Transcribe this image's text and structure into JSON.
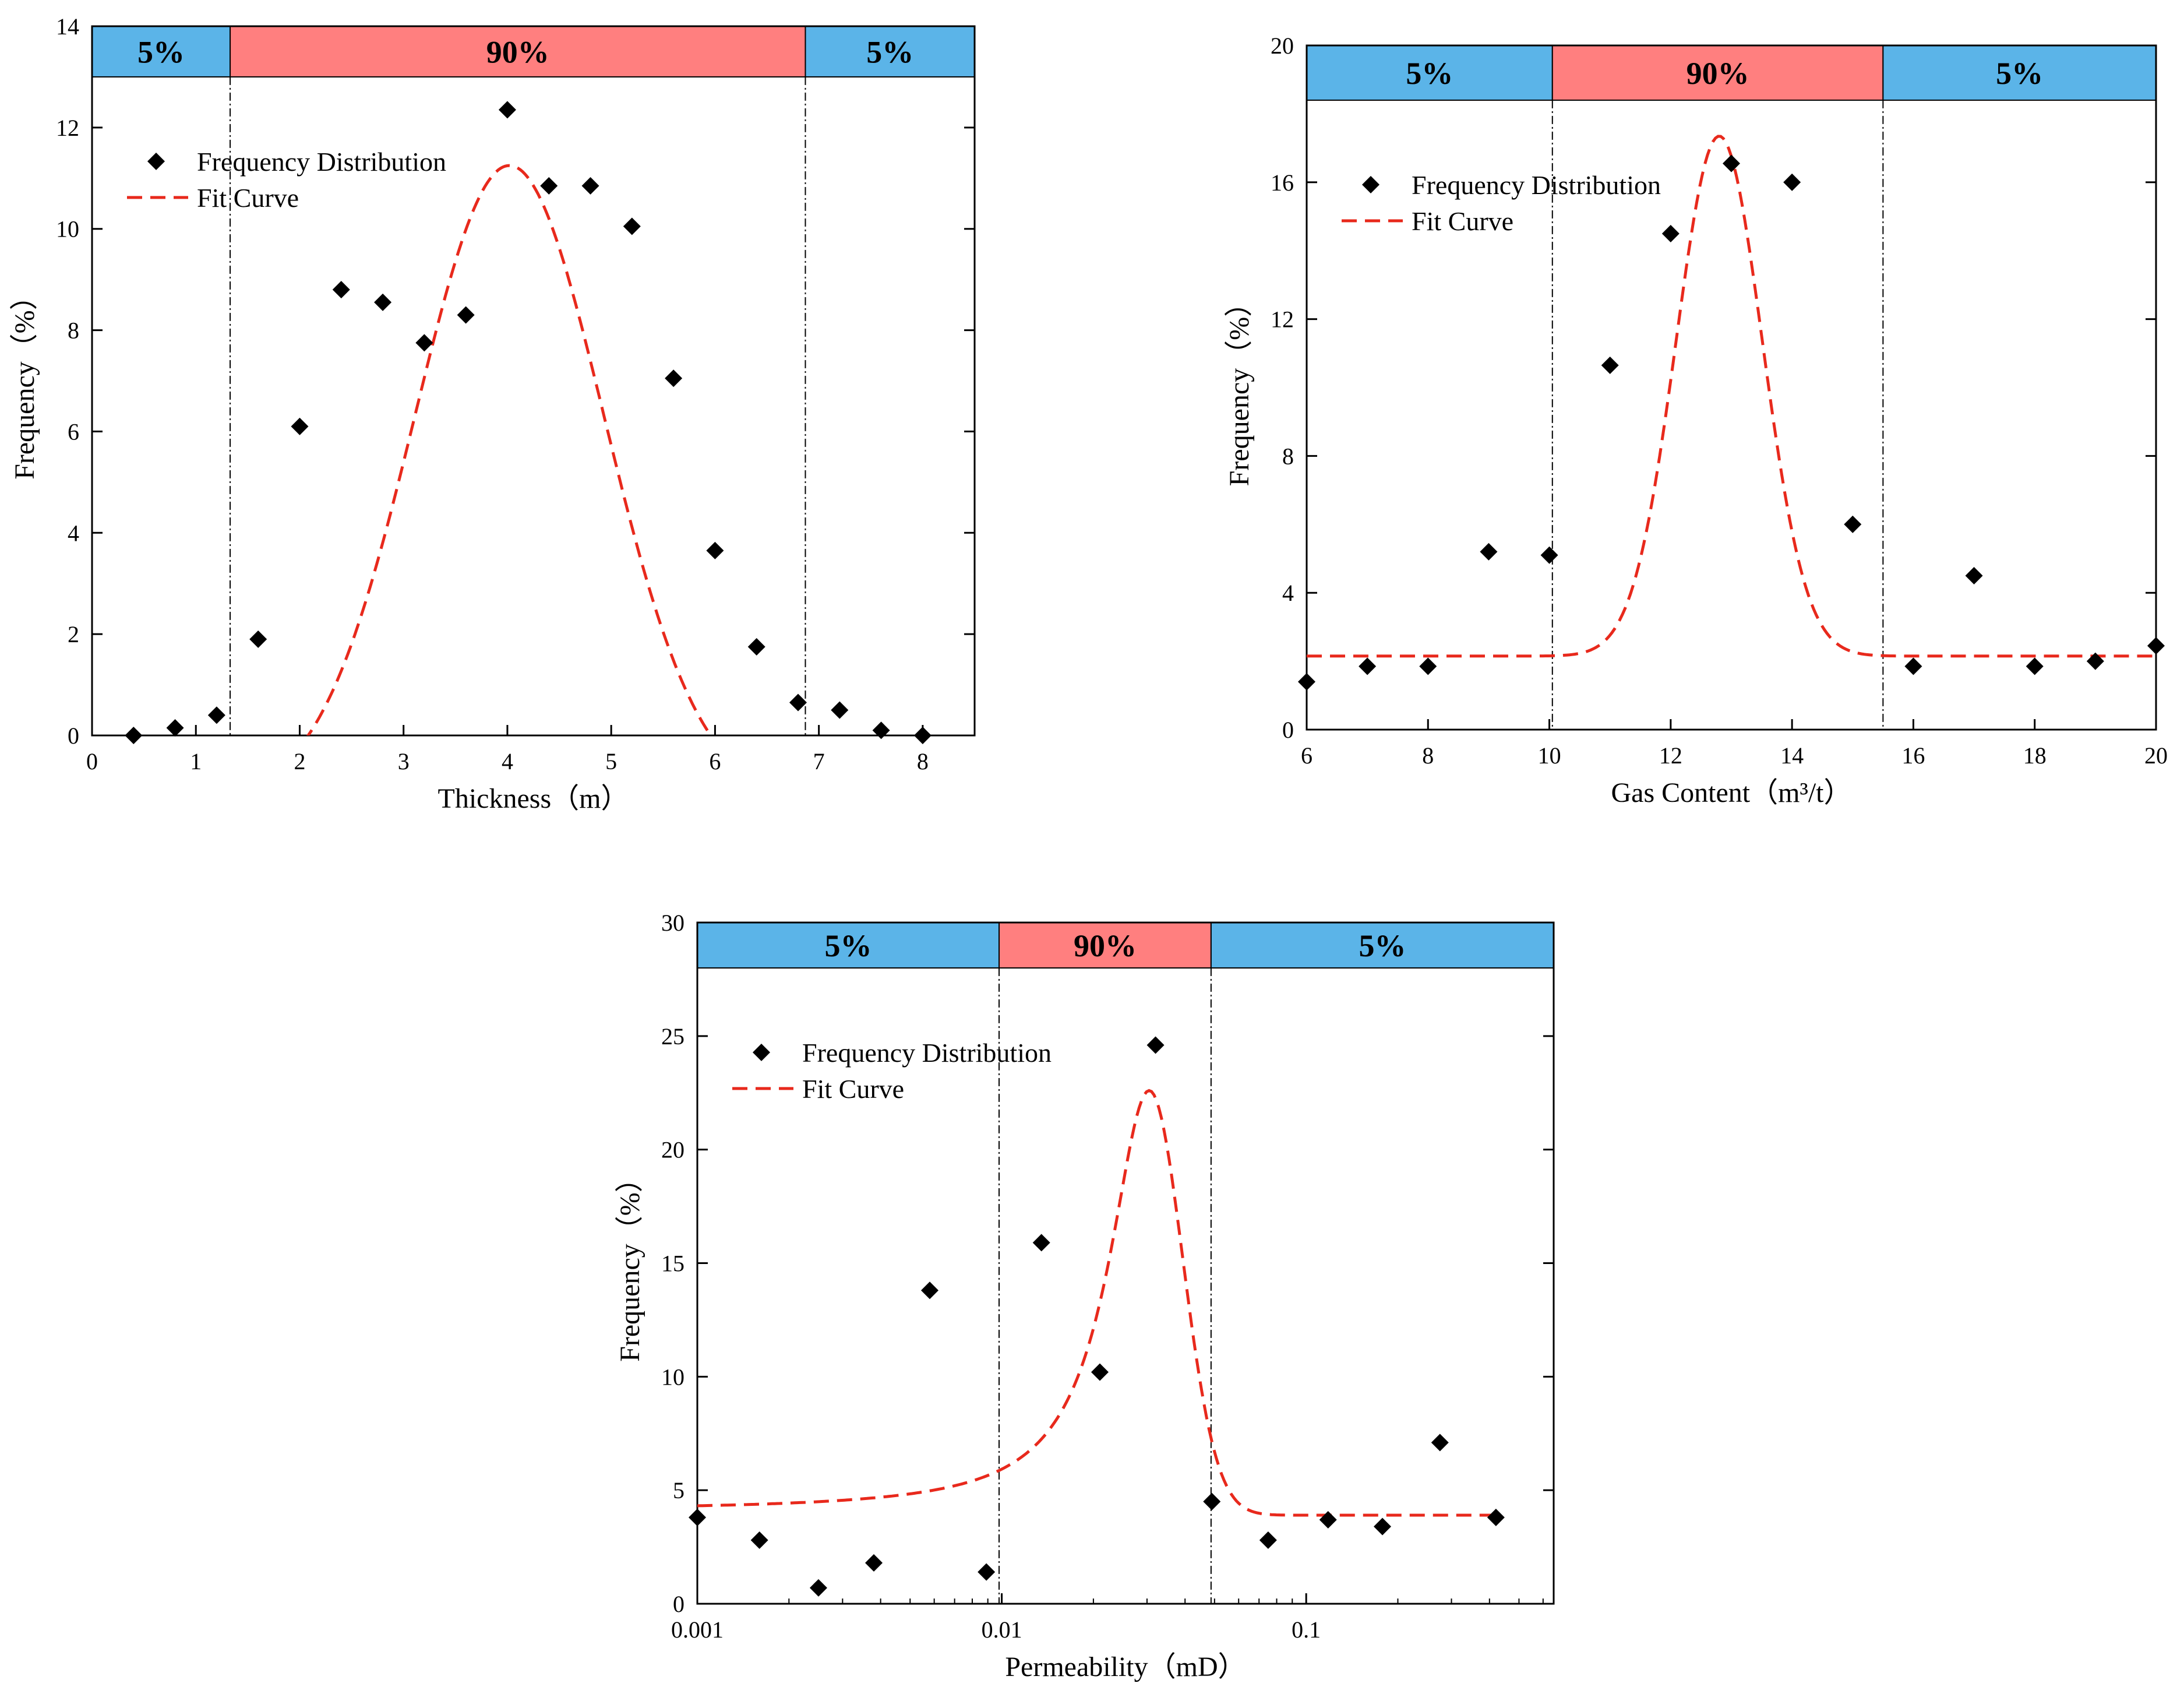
{
  "colors": {
    "tail_band": "#5BB4E8",
    "core_band": "#FF7F7F",
    "marker": "#000000",
    "fit_curve": "#E8291C"
  },
  "chart_data": [
    {
      "id": "thickness",
      "type": "scatter",
      "xscale": "linear",
      "xlabel": "Thickness（m）",
      "ylabel": "Frequency（%）",
      "xlim": [
        0,
        8.5
      ],
      "ylim": [
        0,
        14
      ],
      "xticks": [
        0,
        1,
        2,
        3,
        4,
        5,
        6,
        7,
        8
      ],
      "xtick_labels": [
        "0",
        "1",
        "2",
        "3",
        "4",
        "5",
        "6",
        "7",
        "8"
      ],
      "yticks": [
        0,
        2,
        4,
        6,
        8,
        10,
        12,
        14
      ],
      "ytick_labels": [
        "0",
        "2",
        "4",
        "6",
        "8",
        "10",
        "12",
        "14"
      ],
      "band_ymin": 13,
      "bands": [
        {
          "label": "5%",
          "from": 0,
          "to": 1.33,
          "role": "tail"
        },
        {
          "label": "90%",
          "from": 1.33,
          "to": 6.87,
          "role": "core"
        },
        {
          "label": "5%",
          "from": 6.87,
          "to": 8.5,
          "role": "tail"
        }
      ],
      "legend": {
        "position": "top-left",
        "series_label": "Frequency Distribution",
        "fit_label": "Fit Curve"
      },
      "series": [
        {
          "name": "Frequency Distribution",
          "x": [
            0.4,
            0.8,
            1.2,
            1.6,
            2.0,
            2.4,
            2.8,
            3.2,
            3.6,
            4.0,
            4.4,
            4.8,
            5.2,
            5.6,
            6.0,
            6.4,
            6.8,
            7.2,
            7.6,
            8.0
          ],
          "y": [
            0.0,
            0.15,
            0.4,
            1.9,
            6.1,
            8.8,
            8.55,
            7.75,
            8.3,
            12.35,
            10.85,
            10.85,
            10.05,
            7.05,
            3.65,
            1.75,
            0.65,
            0.5,
            0.1,
            0.0
          ]
        }
      ],
      "fit": {
        "model": "gauss",
        "y0": -1.3,
        "A": 12.55,
        "xc": 4.02,
        "w": 1.82,
        "x_from": 0.64,
        "x_to": 7.44
      }
    },
    {
      "id": "gas-content",
      "type": "scatter",
      "xscale": "linear",
      "xlabel": "Gas Content（m³/t）",
      "ylabel": "Frequency（%）",
      "xlim": [
        6,
        20
      ],
      "ylim": [
        0,
        20
      ],
      "xticks": [
        6,
        8,
        10,
        12,
        14,
        16,
        18,
        20
      ],
      "xtick_labels": [
        "6",
        "8",
        "10",
        "12",
        "14",
        "16",
        "18",
        "20"
      ],
      "yticks": [
        0,
        4,
        8,
        12,
        16,
        20
      ],
      "ytick_labels": [
        "0",
        "4",
        "8",
        "12",
        "16",
        "20"
      ],
      "band_ymin": 18.4,
      "bands": [
        {
          "label": "5%",
          "from": 6,
          "to": 10.05,
          "role": "tail"
        },
        {
          "label": "90%",
          "from": 10.05,
          "to": 15.5,
          "role": "core"
        },
        {
          "label": "5%",
          "from": 15.5,
          "to": 20,
          "role": "tail"
        }
      ],
      "legend": {
        "position": "top-left",
        "series_label": "Frequency Distribution",
        "fit_label": "Fit Curve"
      },
      "series": [
        {
          "name": "Frequency Distribution",
          "x": [
            6,
            7,
            8,
            9,
            10,
            11,
            12,
            13,
            14,
            15,
            16,
            17,
            18,
            19,
            20
          ],
          "y": [
            1.4,
            1.85,
            1.85,
            5.2,
            5.1,
            10.65,
            14.5,
            16.55,
            16.0,
            6.0,
            1.85,
            4.5,
            1.85,
            2.0,
            2.45
          ]
        }
      ],
      "fit": {
        "model": "gauss",
        "y0": 2.15,
        "A": 15.2,
        "xc": 12.8,
        "w": 1.42,
        "x_from": 6,
        "x_to": 20
      }
    },
    {
      "id": "permeability",
      "type": "scatter",
      "xscale": "log",
      "xlabel": "Permeability（mD）",
      "ylabel": "Frequency（%）",
      "xlim": [
        0.001,
        0.65
      ],
      "ylim": [
        0,
        30
      ],
      "xticks": [
        0.001,
        0.01,
        0.1
      ],
      "xtick_labels": [
        "0.001",
        "0.01",
        "0.1"
      ],
      "yticks": [
        0,
        5,
        10,
        15,
        20,
        25,
        30
      ],
      "ytick_labels": [
        "0",
        "5",
        "10",
        "15",
        "20",
        "25",
        "30"
      ],
      "band_ymin": 28,
      "bands": [
        {
          "label": "5%",
          "from": 0.001,
          "to": 0.0098,
          "role": "tail"
        },
        {
          "label": "90%",
          "from": 0.0098,
          "to": 0.0487,
          "role": "core"
        },
        {
          "label": "5%",
          "from": 0.0487,
          "to": 0.65,
          "role": "tail"
        }
      ],
      "legend": {
        "position": "top-left",
        "series_label": "Frequency Distribution",
        "fit_label": "Fit Curve"
      },
      "series": [
        {
          "name": "Frequency Distribution",
          "x": [
            0.001,
            0.0016,
            0.0025,
            0.0038,
            0.0058,
            0.0089,
            0.0135,
            0.021,
            0.032,
            0.049,
            0.075,
            0.118,
            0.178,
            0.275,
            0.42
          ],
          "y": [
            3.8,
            2.8,
            0.7,
            1.8,
            13.8,
            1.4,
            15.9,
            10.2,
            24.6,
            4.5,
            2.8,
            3.7,
            3.4,
            7.1,
            3.8
          ]
        }
      ],
      "fit": {
        "model": "skewed-peak",
        "y0": 4.1,
        "y0_right": 3.9,
        "peak": 22.6,
        "xc": 0.0305,
        "w_left": 0.6,
        "w_right": 0.2,
        "x_from": 0.001,
        "x_to": 0.42
      }
    }
  ]
}
